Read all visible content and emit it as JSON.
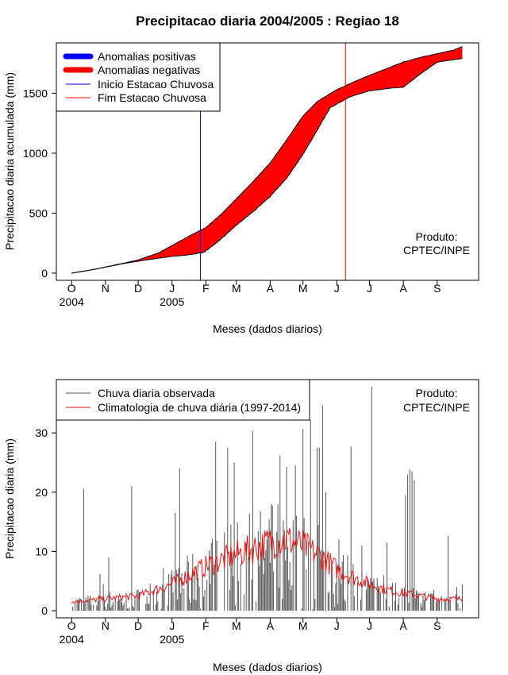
{
  "title": "Precipitacao diaria 2004/2005 : Regiao 18",
  "credit": {
    "line1": "Produto:",
    "line2": "CPTEC/INPE"
  },
  "months": [
    "O",
    "N",
    "D",
    "J",
    "F",
    "M",
    "A",
    "M",
    "J",
    "J",
    "A",
    "S"
  ],
  "month_day_offsets": [
    0,
    31,
    61,
    92,
    123,
    151,
    182,
    212,
    243,
    273,
    304,
    335
  ],
  "year_labels": [
    {
      "text": "2004",
      "month_index": 0
    },
    {
      "text": "2005",
      "month_index": 3
    }
  ],
  "colors": {
    "observed_cumulative": "#000000",
    "negative_fill": "#ff0000",
    "positive_fill": "#0000ff",
    "season_start_line": "#0000ff",
    "season_end_line": "#ff0000",
    "daily_bars": "#555555",
    "climatology_line": "#ff0000"
  },
  "chart_data": [
    {
      "type": "area",
      "title": "Precipitacao diaria 2004/2005 : Regiao 18",
      "xlabel": "Meses (dados diarios)",
      "ylabel": "Precipitacao diaria acumulada (mm)",
      "ylim": [
        -60,
        1920
      ],
      "xlim_days": [
        -14,
        373
      ],
      "yticks": [
        0,
        500,
        1000,
        1500
      ],
      "day_start": 0,
      "day_end": 358,
      "observed_knots": [
        [
          0,
          0
        ],
        [
          20,
          30
        ],
        [
          45,
          75
        ],
        [
          61,
          100
        ],
        [
          80,
          125
        ],
        [
          92,
          140
        ],
        [
          105,
          150
        ],
        [
          120,
          170
        ],
        [
          123,
          185
        ],
        [
          135,
          270
        ],
        [
          151,
          400
        ],
        [
          166,
          510
        ],
        [
          182,
          640
        ],
        [
          197,
          790
        ],
        [
          212,
          990
        ],
        [
          225,
          1190
        ],
        [
          237,
          1380
        ],
        [
          243,
          1410
        ],
        [
          255,
          1470
        ],
        [
          273,
          1520
        ],
        [
          295,
          1545
        ],
        [
          304,
          1550
        ],
        [
          318,
          1650
        ],
        [
          335,
          1760
        ],
        [
          350,
          1780
        ],
        [
          358,
          1790
        ]
      ],
      "climatology_knots": [
        [
          0,
          0
        ],
        [
          20,
          30
        ],
        [
          45,
          78
        ],
        [
          61,
          110
        ],
        [
          80,
          170
        ],
        [
          92,
          230
        ],
        [
          108,
          310
        ],
        [
          123,
          380
        ],
        [
          137,
          490
        ],
        [
          151,
          620
        ],
        [
          166,
          760
        ],
        [
          182,
          920
        ],
        [
          197,
          1110
        ],
        [
          212,
          1310
        ],
        [
          225,
          1430
        ],
        [
          243,
          1530
        ],
        [
          260,
          1600
        ],
        [
          273,
          1650
        ],
        [
          290,
          1710
        ],
        [
          304,
          1760
        ],
        [
          320,
          1800
        ],
        [
          335,
          1830
        ],
        [
          350,
          1860
        ],
        [
          358,
          1890
        ]
      ],
      "season_start_day": 118,
      "season_end_day": 251,
      "legend": {
        "position": "top-left",
        "entries": [
          {
            "label": "Anomalias positivas",
            "color": "#0000ff",
            "style": "thick"
          },
          {
            "label": "Anomalias negativas",
            "color": "#ff0000",
            "style": "thick"
          },
          {
            "label": "Inicio Estacao Chuvosa",
            "color": "#0000ff",
            "style": "thin"
          },
          {
            "label": "Fim Estacao Chuvosa",
            "color": "#ff0000",
            "style": "thin"
          }
        ]
      }
    },
    {
      "type": "bar",
      "title": "",
      "xlabel": "Meses (dados diarios)",
      "ylabel": "Precipitacao diaria (mm)",
      "ylim": [
        -1.2,
        39
      ],
      "xlim_days": [
        -14,
        373
      ],
      "yticks": [
        0,
        10,
        20,
        30
      ],
      "series": [
        {
          "name": "Chuva diaria observada",
          "spikes": [
            [
              11,
              20.6
            ],
            [
              26,
              6.2
            ],
            [
              29,
              4.5
            ],
            [
              34,
              9.0
            ],
            [
              55,
              21.0
            ],
            [
              84,
              7.2
            ],
            [
              95,
              16.5
            ],
            [
              99,
              24.0
            ],
            [
              113,
              7.5
            ],
            [
              120,
              6.0
            ],
            [
              127,
              4.5
            ],
            [
              132,
              28.5
            ],
            [
              143,
              27.5
            ],
            [
              149,
              25.0
            ],
            [
              153,
              5.0
            ],
            [
              160,
              11.5
            ],
            [
              166,
              30.3
            ],
            [
              174,
              9.5
            ],
            [
              183,
              18.0
            ],
            [
              191,
              26.2
            ],
            [
              197,
              24.3
            ],
            [
              205,
              24.5
            ],
            [
              212,
              30.7
            ],
            [
              215,
              7.0
            ],
            [
              219,
              32.2
            ],
            [
              225,
              27.5
            ],
            [
              227,
              27.5
            ],
            [
              230,
              34.6
            ],
            [
              233,
              20.0
            ],
            [
              238,
              8.0
            ],
            [
              245,
              12.0
            ],
            [
              256,
              27.7
            ],
            [
              266,
              11.0
            ],
            [
              275,
              37.8
            ],
            [
              280,
              5.5
            ],
            [
              286,
              6.0
            ],
            [
              289,
              11.5
            ],
            [
              306,
              19.5
            ],
            [
              308,
              23.0
            ],
            [
              310,
              23.8
            ],
            [
              312,
              23.5
            ],
            [
              314,
              22.0
            ],
            [
              332,
              3.5
            ],
            [
              345,
              12.6
            ],
            [
              353,
              4.0
            ],
            [
              358,
              4.5
            ]
          ],
          "base_seed": 7
        },
        {
          "name": "Climatologia de chuva diária (1997-2014)",
          "knots": [
            [
              0,
              1.5
            ],
            [
              30,
              2.0
            ],
            [
              61,
              2.5
            ],
            [
              92,
              4.5
            ],
            [
              123,
              7.5
            ],
            [
              151,
              9.5
            ],
            [
              166,
              10.5
            ],
            [
              182,
              11.5
            ],
            [
              197,
              12.0
            ],
            [
              212,
              11.0
            ],
            [
              230,
              9.0
            ],
            [
              243,
              7.0
            ],
            [
              260,
              5.5
            ],
            [
              273,
              4.5
            ],
            [
              290,
              3.5
            ],
            [
              304,
              3.0
            ],
            [
              320,
              2.5
            ],
            [
              335,
              2.0
            ],
            [
              358,
              2.0
            ]
          ]
        }
      ],
      "legend": {
        "position": "top-left",
        "entries": [
          {
            "label": "Chuva diaria observada",
            "color": "#555555"
          },
          {
            "label": "Climatologia de chuva diária (1997-2014)",
            "color": "#ff0000"
          }
        ]
      }
    }
  ]
}
